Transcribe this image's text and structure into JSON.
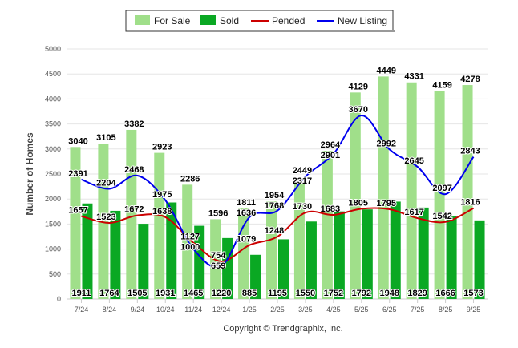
{
  "chart_data": {
    "type": "bar",
    "title": "",
    "xlabel": "",
    "ylabel": "Number of Homes",
    "ylim": [
      0,
      5000
    ],
    "yticks": [
      0,
      500,
      1000,
      1500,
      2000,
      2500,
      3000,
      3500,
      4000,
      4500,
      5000
    ],
    "grid": true,
    "legend_position": "top-center",
    "categories": [
      "7/24",
      "8/24",
      "9/24",
      "10/24",
      "11/24",
      "12/24",
      "1/25",
      "2/25",
      "3/25",
      "4/25",
      "5/25",
      "6/25",
      "7/25",
      "8/25",
      "9/25"
    ],
    "series": [
      {
        "name": "For Sale",
        "kind": "bar",
        "color": "#a0df8a",
        "values": [
          3040,
          3105,
          3382,
          2923,
          2286,
          1596,
          1811,
          1954,
          2317,
          2964,
          4129,
          4449,
          4331,
          4159,
          4278
        ]
      },
      {
        "name": "Sold",
        "kind": "bar",
        "color": "#0aa823",
        "values": [
          1911,
          1764,
          1505,
          1931,
          1465,
          1220,
          885,
          1195,
          1550,
          1752,
          1792,
          1948,
          1829,
          1666,
          1573
        ]
      },
      {
        "name": "Pended",
        "kind": "line",
        "color": "#cc0000",
        "values": [
          1657,
          1523,
          1672,
          1638,
          1127,
          754,
          1079,
          1248,
          1730,
          1683,
          1805,
          1795,
          1617,
          1542,
          1816
        ]
      },
      {
        "name": "New Listing",
        "kind": "line",
        "color": "#0000ee",
        "values": [
          2391,
          2204,
          2468,
          1975,
          1000,
          659,
          1636,
          1768,
          2449,
          2901,
          3670,
          2992,
          2645,
          2097,
          2843
        ]
      }
    ]
  },
  "footer": {
    "copyright": "Copyright © Trendgraphix, Inc."
  }
}
